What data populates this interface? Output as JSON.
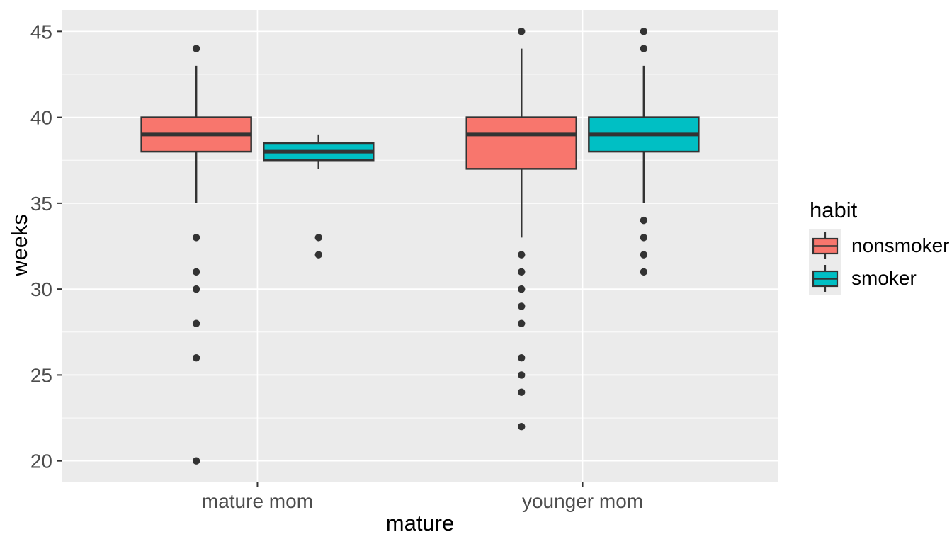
{
  "chart_data": {
    "type": "boxplot",
    "title": "",
    "xlabel": "mature",
    "ylabel": "weeks",
    "categories": [
      "mature mom",
      "younger mom"
    ],
    "y_ticks": [
      20,
      25,
      30,
      35,
      40,
      45
    ],
    "y_minor_ticks": [
      22.5,
      27.5,
      32.5,
      37.5,
      42.5
    ],
    "ylim": [
      18.75,
      46.25
    ],
    "grid": "major-and-minor-horizontal-plus-category-vertical",
    "legend_position": "right",
    "legend": {
      "title": "habit",
      "entries": [
        {
          "label": "nonsmoker",
          "color": "#F8766D"
        },
        {
          "label": "smoker",
          "color": "#00BFC4"
        }
      ]
    },
    "series": [
      {
        "name": "nonsmoker",
        "color": "#F8766D",
        "boxes": [
          {
            "category": "mature mom",
            "whisker_low": 35,
            "q1": 38,
            "median": 39,
            "q3": 40,
            "whisker_high": 43,
            "outliers": [
              44,
              33,
              31,
              30,
              28,
              26,
              20
            ]
          },
          {
            "category": "younger mom",
            "whisker_low": 33,
            "q1": 37,
            "median": 39,
            "q3": 40,
            "whisker_high": 44,
            "outliers": [
              45,
              32,
              31,
              30,
              29,
              28,
              26,
              25,
              24,
              22
            ]
          }
        ]
      },
      {
        "name": "smoker",
        "color": "#00BFC4",
        "boxes": [
          {
            "category": "mature mom",
            "whisker_low": 37,
            "q1": 37.5,
            "median": 38,
            "q3": 38.5,
            "whisker_high": 39,
            "outliers": [
              33,
              32
            ]
          },
          {
            "category": "younger mom",
            "whisker_low": 35,
            "q1": 38,
            "median": 39,
            "q3": 40,
            "whisker_high": 43,
            "outliers": [
              45,
              44,
              34,
              33,
              32,
              31
            ]
          }
        ]
      }
    ],
    "colors": {
      "panel_bg": "#EBEBEB",
      "grid": "#FFFFFF",
      "box_stroke": "#333333",
      "outlier": "#333333",
      "tick_mark": "#333333",
      "tick_label": "#4D4D4D",
      "legend_key_bg": "#EBEBEB",
      "title_text": "#000000"
    }
  }
}
